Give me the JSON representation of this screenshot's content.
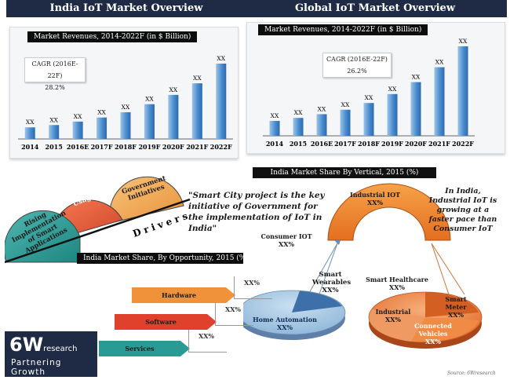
{
  "india_banner": "India IoT Market Overview",
  "global_banner": "Global IoT Market Overview",
  "india_rev_title": "Market Revenues, 2014-2022F  (in $ Billion)",
  "global_rev_title": "Market Revenues, 2014-2022F (in $ Billion)",
  "india_cagr": {
    "label": "CAGR (2016E-22F)",
    "value": "28.2%"
  },
  "global_cagr": {
    "label": "CAGR (2016E-22F)",
    "value": "26.2%"
  },
  "chart_data": [
    {
      "type": "bar",
      "title": "Market Revenues, 2014-2022F  (in $ Billion)",
      "categories": [
        "2014",
        "2015",
        "2016E",
        "2017F",
        "2018F",
        "2019F",
        "2020F",
        "2021F",
        "2022F"
      ],
      "values": [
        1.0,
        1.2,
        1.5,
        1.85,
        2.3,
        3.0,
        3.8,
        4.8,
        6.5
      ],
      "data_labels": [
        "XX",
        "XX",
        "XX",
        "XX",
        "XX",
        "XX",
        "XX",
        "XX",
        "XX"
      ]
    },
    {
      "type": "bar",
      "title": "Market Revenues, 2014-2022F (in $ Billion)",
      "categories": [
        "2014",
        "2015",
        "2016E",
        "2017F",
        "2018F",
        "2019F",
        "2020F",
        "2021F",
        "2022F"
      ],
      "values": [
        1.0,
        1.2,
        1.45,
        1.75,
        2.2,
        2.8,
        3.6,
        4.6,
        6.0
      ],
      "data_labels": [
        "XX",
        "XX",
        "XX",
        "XX",
        "XX",
        "XX",
        "XX",
        "XX",
        "XX"
      ]
    }
  ],
  "drivers": {
    "label": "Drivers",
    "items": [
      "Rising Implementation of Smart Applications",
      "Internet Usage",
      "Government Initiatives"
    ]
  },
  "quote": "\"Smart City project is the key initiative of Government for the implementation of IoT in India\"",
  "vertical_title": "India Market Share By Vertical, 2015 (%)",
  "vertical": {
    "industrial_iot": "Industrial IOT",
    "industrial_iot_pct": "XX%",
    "consumer_iot": "Consumer IOT",
    "consumer_iot_pct": "XX%",
    "note": "In India, Industrial IoT is growing at a faster pace than Consumer IoT",
    "smart_wearables": "Smart Wearables",
    "smart_wearables_pct": "XX%",
    "home_automation": "Home Automation",
    "home_automation_pct": "XX%",
    "smart_healthcare": "Smart Healthcare",
    "smart_healthcare_pct": "XX%",
    "smart_meter": "Smart Meter",
    "smart_meter_pct": "XX%",
    "industrial": "Industrial",
    "industrial_pct": "XX%",
    "connected_vehicles": "Connected Vehicles",
    "connected_vehicles_pct": "XX%"
  },
  "opportunity_title": "India Market Share, By Opportunity, 2015 (%)",
  "opportunity": [
    {
      "label": "Hardware",
      "value": "XX%",
      "color": "#f0923a"
    },
    {
      "label": "Software",
      "value": "XX%",
      "color": "#e0412d"
    },
    {
      "label": "Services",
      "value": "XX%",
      "color": "#2a9a94"
    }
  ],
  "logo": {
    "brand": "6W",
    "brand_suffix": "research",
    "tagline": "Partnering Growth"
  },
  "source": "Source: 6Wresearch"
}
